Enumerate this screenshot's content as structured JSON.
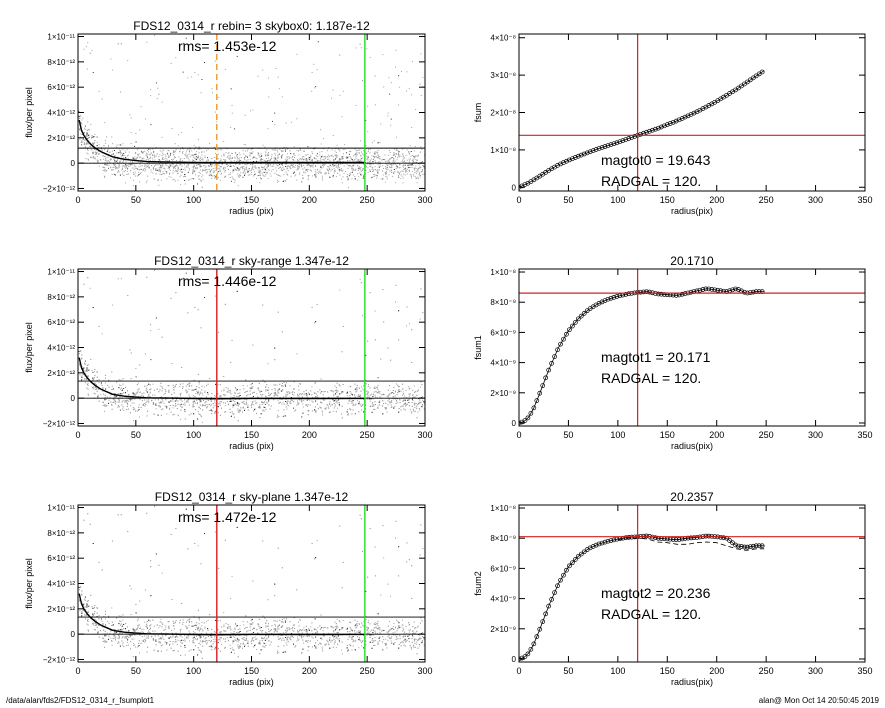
{
  "footer": {
    "path": "/data/alan/fds2/FDS12_0314_r_fsumplot1",
    "stamp": "alan@  Mon Oct 14 20:50:45 2019"
  },
  "colors": {
    "points": "#a0a0a0",
    "dark_points": "#333333",
    "profile": "#000000",
    "red": "#d42020",
    "green": "#22dd22",
    "orange": "#f0962a"
  },
  "chart_data": [
    {
      "type": "scatter",
      "title": "FDS12_0314_r rebin= 3    skybox0:  1.187e-12",
      "annotation": "rms= 1.453e-12",
      "xlabel": "radius (pix)",
      "ylabel": "flux/per pixel",
      "xlim": [
        0,
        300
      ],
      "ylim": [
        -2.2e-12,
        1.02e-11
      ],
      "xticks": [
        0,
        50,
        100,
        150,
        200,
        250,
        300
      ],
      "yticks": [
        {
          "v": 1e-11,
          "label": "1×10⁻¹¹"
        },
        {
          "v": 8e-12,
          "label": "8×10⁻¹²"
        },
        {
          "v": 6e-12,
          "label": "6×10⁻¹²"
        },
        {
          "v": 4e-12,
          "label": "4×10⁻¹²"
        },
        {
          "v": 2e-12,
          "label": "2×10⁻¹²"
        },
        {
          "v": 0,
          "label": "0"
        },
        {
          "v": -2e-12,
          "label": "−2×10⁻¹²"
        }
      ],
      "hlines": [
        1.187e-12,
        0
      ],
      "vlines": [
        {
          "x": 120,
          "color": "orange",
          "dashed": true
        },
        {
          "x": 248,
          "color": "green"
        }
      ],
      "profile": {
        "x": [
          1,
          3,
          5,
          8,
          11,
          15,
          20,
          25,
          30,
          40,
          50,
          60,
          80,
          100,
          120,
          150,
          200,
          248
        ],
        "y": [
          3.4e-12,
          2.6e-12,
          2.2e-12,
          1.8e-12,
          1.5e-12,
          1.2e-12,
          9e-13,
          7e-13,
          5e-13,
          3e-13,
          2e-13,
          1.2e-13,
          8e-14,
          5e-14,
          4e-14,
          6e-14,
          5e-14,
          6e-14
        ]
      }
    },
    {
      "type": "line",
      "title": "",
      "annotation": [
        "magtot0 =  19.643",
        "RADGAL =    120."
      ],
      "xlabel": "radius(pix)",
      "ylabel": "fsum",
      "xlim": [
        0,
        350
      ],
      "ylim": [
        -1e-09,
        4.1e-08
      ],
      "xticks": [
        0,
        50,
        100,
        150,
        200,
        250,
        300,
        350
      ],
      "yticks": [
        {
          "v": 4e-08,
          "label": "4×10⁻⁸"
        },
        {
          "v": 3e-08,
          "label": "3×10⁻⁸"
        },
        {
          "v": 2e-08,
          "label": "2×10⁻⁸"
        },
        {
          "v": 1e-08,
          "label": "1×10⁻⁸"
        },
        {
          "v": 0,
          "label": "0"
        }
      ],
      "hline": 1.39e-08,
      "vline": 120,
      "series": [
        {
          "x": [
            0,
            10,
            20,
            30,
            40,
            50,
            60,
            80,
            100,
            120,
            140,
            160,
            180,
            200,
            220,
            240,
            248
          ],
          "y": [
            0,
            1.2e-09,
            2.8e-09,
            4.5e-09,
            6e-09,
            7.2e-09,
            8.3e-09,
            1.03e-08,
            1.2e-08,
            1.39e-08,
            1.57e-08,
            1.78e-08,
            2.02e-08,
            2.3e-08,
            2.62e-08,
            2.98e-08,
            3.12e-08
          ]
        }
      ]
    },
    {
      "type": "scatter",
      "title": "FDS12_0314_r sky-range  1.347e-12",
      "annotation": "rms= 1.446e-12",
      "xlabel": "radius (pix)",
      "ylabel": "flux/per pixel",
      "xlim": [
        0,
        300
      ],
      "ylim": [
        -2.2e-12,
        1.02e-11
      ],
      "xticks": [
        0,
        50,
        100,
        150,
        200,
        250,
        300
      ],
      "yticks": [
        {
          "v": 1e-11,
          "label": "1×10⁻¹¹"
        },
        {
          "v": 8e-12,
          "label": "8×10⁻¹²"
        },
        {
          "v": 6e-12,
          "label": "6×10⁻¹²"
        },
        {
          "v": 4e-12,
          "label": "4×10⁻¹²"
        },
        {
          "v": 2e-12,
          "label": "2×10⁻¹²"
        },
        {
          "v": 0,
          "label": "0"
        },
        {
          "v": -2e-12,
          "label": "−2×10⁻¹²"
        }
      ],
      "hlines": [
        1.347e-12,
        0
      ],
      "vlines": [
        {
          "x": 120,
          "color": "red"
        },
        {
          "x": 248,
          "color": "green"
        }
      ],
      "profile": {
        "x": [
          1,
          3,
          5,
          8,
          11,
          15,
          20,
          25,
          30,
          40,
          50,
          60,
          80,
          100,
          120,
          150,
          200,
          248
        ],
        "y": [
          3.2e-12,
          2.4e-12,
          2e-12,
          1.6e-12,
          1.3e-12,
          1e-12,
          7e-13,
          5e-13,
          3e-13,
          1.5e-13,
          8e-14,
          3e-14,
          0,
          -3e-14,
          -5e-14,
          -2e-14,
          -3e-14,
          -2e-14
        ]
      }
    },
    {
      "type": "line",
      "title": "20.1710",
      "annotation": [
        "magtot1 =  20.171",
        "RADGAL =    120."
      ],
      "xlabel": "radius(pix)",
      "ylabel": "fsum1",
      "xlim": [
        0,
        350
      ],
      "ylim": [
        -2e-10,
        1.02e-08
      ],
      "xticks": [
        0,
        50,
        100,
        150,
        200,
        250,
        300,
        350
      ],
      "yticks": [
        {
          "v": 1e-08,
          "label": "1×10⁻⁸"
        },
        {
          "v": 8e-09,
          "label": "8×10⁻⁹"
        },
        {
          "v": 6e-09,
          "label": "6×10⁻⁹"
        },
        {
          "v": 4e-09,
          "label": "4×10⁻⁹"
        },
        {
          "v": 2e-09,
          "label": "2×10⁻⁹"
        },
        {
          "v": 0,
          "label": "0"
        }
      ],
      "hline": 8.6e-09,
      "vline": 120,
      "series": [
        {
          "x": [
            0,
            5,
            10,
            15,
            20,
            30,
            40,
            50,
            60,
            70,
            80,
            90,
            100,
            110,
            120,
            130,
            140,
            150,
            160,
            170,
            180,
            190,
            200,
            210,
            220,
            230,
            240,
            248
          ],
          "y": [
            0,
            1e-10,
            4e-10,
            1e-09,
            1.8e-09,
            3.5e-09,
            5e-09,
            6.1e-09,
            6.9e-09,
            7.5e-09,
            7.9e-09,
            8.2e-09,
            8.4e-09,
            8.55e-09,
            8.65e-09,
            8.7e-09,
            8.55e-09,
            8.5e-09,
            8.45e-09,
            8.6e-09,
            8.75e-09,
            8.9e-09,
            8.8e-09,
            8.7e-09,
            8.9e-09,
            8.6e-09,
            8.7e-09,
            8.7e-09
          ]
        }
      ]
    },
    {
      "type": "scatter",
      "title": "FDS12_0314_r sky-plane  1.347e-12",
      "annotation": "rms= 1.472e-12",
      "xlabel": "radius (pix)",
      "ylabel": "flux/per pixel",
      "xlim": [
        0,
        300
      ],
      "ylim": [
        -2.2e-12,
        1.02e-11
      ],
      "xticks": [
        0,
        50,
        100,
        150,
        200,
        250,
        300
      ],
      "yticks": [
        {
          "v": 1e-11,
          "label": "1×10⁻¹¹"
        },
        {
          "v": 8e-12,
          "label": "8×10⁻¹²"
        },
        {
          "v": 6e-12,
          "label": "6×10⁻¹²"
        },
        {
          "v": 4e-12,
          "label": "4×10⁻¹²"
        },
        {
          "v": 2e-12,
          "label": "2×10⁻¹²"
        },
        {
          "v": 0,
          "label": "0"
        },
        {
          "v": -2e-12,
          "label": "−2×10⁻¹²"
        }
      ],
      "hlines": [
        1.347e-12,
        0
      ],
      "vlines": [
        {
          "x": 120,
          "color": "red"
        },
        {
          "x": 248,
          "color": "green"
        }
      ],
      "profile": {
        "x": [
          1,
          3,
          5,
          8,
          11,
          15,
          20,
          25,
          30,
          40,
          50,
          60,
          80,
          100,
          120,
          150,
          200,
          248
        ],
        "y": [
          3.2e-12,
          2.4e-12,
          2e-12,
          1.6e-12,
          1.3e-12,
          1e-12,
          7e-13,
          5e-13,
          3e-13,
          1.5e-13,
          8e-14,
          3e-14,
          0,
          -3e-14,
          -5e-14,
          -2e-14,
          -3e-14,
          -2e-14
        ]
      }
    },
    {
      "type": "line",
      "title": "20.2357",
      "annotation": [
        "magtot2 =  20.236",
        "RADGAL =    120."
      ],
      "xlabel": "radius(pix)",
      "ylabel": "fsum2",
      "xlim": [
        0,
        350
      ],
      "ylim": [
        -2e-10,
        1.02e-08
      ],
      "xticks": [
        0,
        50,
        100,
        150,
        200,
        250,
        300,
        350
      ],
      "yticks": [
        {
          "v": 1e-08,
          "label": "1×10⁻⁸"
        },
        {
          "v": 8e-09,
          "label": "8×10⁻⁹"
        },
        {
          "v": 6e-09,
          "label": "6×10⁻⁹"
        },
        {
          "v": 4e-09,
          "label": "4×10⁻⁹"
        },
        {
          "v": 2e-09,
          "label": "2×10⁻⁹"
        },
        {
          "v": 0,
          "label": "0"
        }
      ],
      "hline": 8.1e-09,
      "vline": 120,
      "series": [
        {
          "x": [
            0,
            5,
            10,
            15,
            20,
            30,
            40,
            50,
            60,
            70,
            80,
            90,
            100,
            110,
            120,
            130,
            140,
            150,
            160,
            170,
            180,
            190,
            200,
            210,
            220,
            230,
            240,
            248
          ],
          "y": [
            0,
            1e-10,
            4e-10,
            1e-09,
            1.8e-09,
            3.5e-09,
            5e-09,
            6.1e-09,
            6.8e-09,
            7.3e-09,
            7.6e-09,
            7.8e-09,
            7.95e-09,
            8.05e-09,
            8.1e-09,
            8.15e-09,
            8e-09,
            7.95e-09,
            7.9e-09,
            8e-09,
            8.05e-09,
            8.15e-09,
            8.1e-09,
            8e-09,
            7.5e-09,
            7.4e-09,
            7.5e-09,
            7.5e-09
          ]
        },
        {
          "x": [
            100,
            110,
            120,
            130,
            140,
            150,
            160,
            170,
            180,
            190,
            200,
            210,
            220,
            230,
            240,
            248
          ],
          "y": [
            7.9e-09,
            8e-09,
            8e-09,
            7.95e-09,
            7.75e-09,
            7.7e-09,
            7.6e-09,
            7.6e-09,
            7.7e-09,
            7.75e-09,
            7.7e-09,
            7.5e-09,
            7.3e-09,
            7.2e-09,
            7.3e-09,
            7.3e-09
          ],
          "dashed": true
        }
      ]
    }
  ]
}
